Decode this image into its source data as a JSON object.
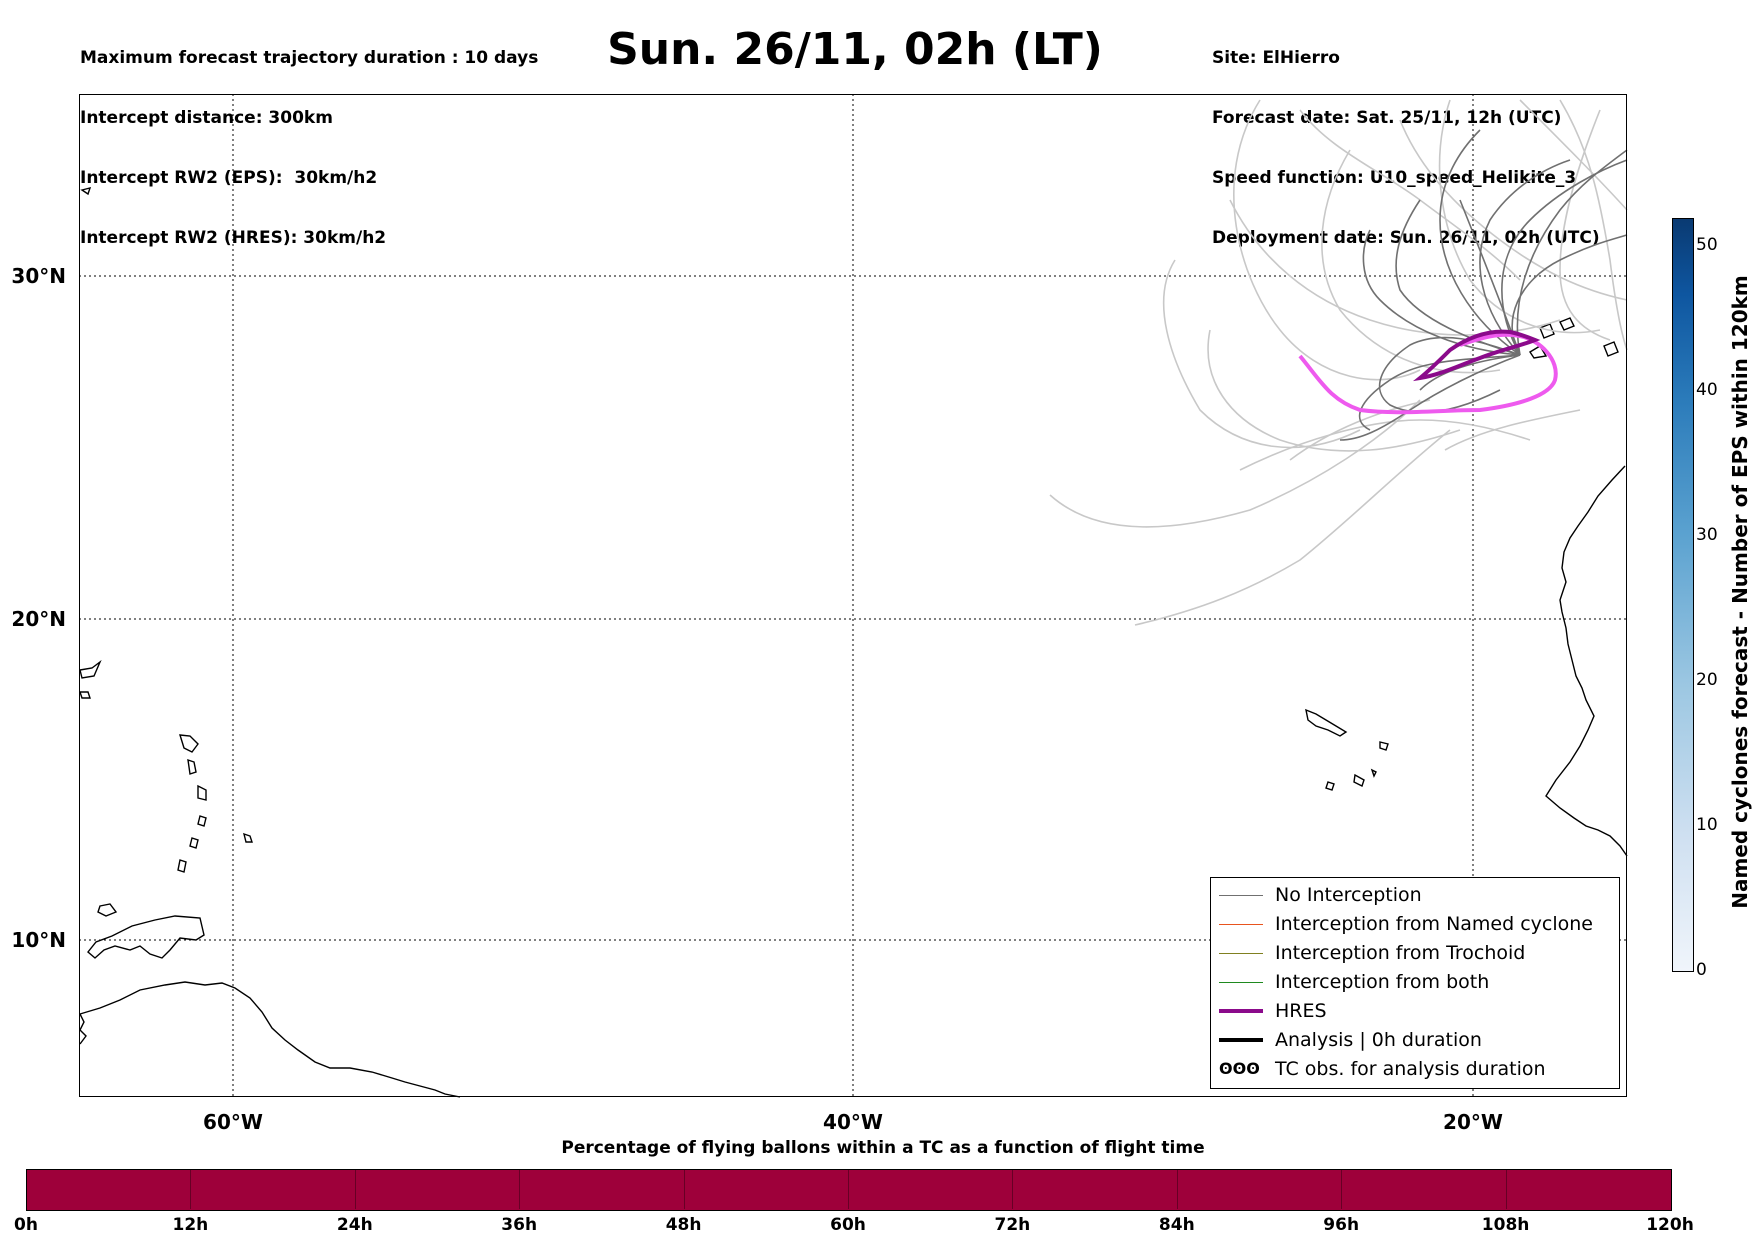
{
  "header": {
    "left_lines": [
      "Maximum forecast trajectory duration : 10 days",
      "Intercept distance: 300km",
      "Intercept RW2 (EPS):  30km/h2",
      "Intercept RW2 (HRES): 30km/h2"
    ],
    "title": "Sun. 26/11, 02h (LT)",
    "right_lines": [
      "Site: ElHierro",
      "Forecast date: Sat. 25/11, 12h (UTC)",
      "Speed function: U10_speed_Helikite_3",
      "Deployment date: Sun. 26/11, 02h (UTC)"
    ]
  },
  "map": {
    "lat_labels": [
      "30°N",
      "20°N",
      "10°N"
    ],
    "lon_labels": [
      "60°W",
      "40°W",
      "20°W"
    ],
    "lon_range": [
      -65,
      -15
    ],
    "lat_range": [
      5.3,
      35.3
    ],
    "gridlines": "dotted",
    "colors": {
      "no_interception": "#707070",
      "eps_light": "#c8c8c8",
      "named_cyclone": "#e8541e",
      "trochoid": "#808020",
      "both": "#1f8a1f",
      "hres": "#8b0a8b",
      "hres_light": "#ee5aee",
      "analysis": "#000000"
    }
  },
  "legend": {
    "items": [
      {
        "label": "No Interception",
        "style": "thin",
        "color": "#707070"
      },
      {
        "label": "Interception from Named cyclone",
        "style": "thin",
        "color": "#e8541e"
      },
      {
        "label": "Interception from Trochoid",
        "style": "thin",
        "color": "#808020"
      },
      {
        "label": "Interception from both",
        "style": "thin",
        "color": "#1f8a1f"
      },
      {
        "label": "HRES",
        "style": "thick",
        "color": "#8b0a8b"
      },
      {
        "label": "Analysis | 0h duration",
        "style": "thick",
        "color": "#000000"
      },
      {
        "label": "TC obs. for analysis duration",
        "style": "symbol",
        "symbol": "ʘʘʘ",
        "color": "#000000"
      }
    ]
  },
  "colorbar_vertical": {
    "label": "Named cyclones forecast - Number of EPS within 120km",
    "ticks": [
      "0",
      "10",
      "20",
      "30",
      "40",
      "50"
    ]
  },
  "colorbar_horizontal": {
    "title": "Percentage of flying ballons within a TC as a function of flight time",
    "ticks": [
      "0h",
      "12h",
      "24h",
      "36h",
      "48h",
      "60h",
      "72h",
      "84h",
      "96h",
      "108h",
      "120h"
    ],
    "fill_color": "#9e003a"
  }
}
